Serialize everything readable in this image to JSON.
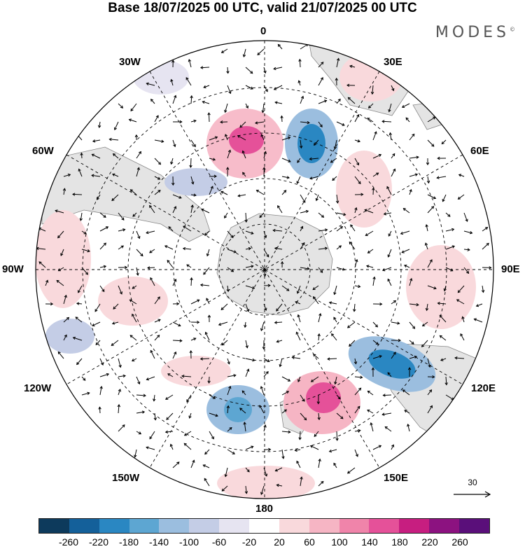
{
  "title": "Base 18/07/2025 00 UTC, valid 21/07/2025 00 UTC",
  "brand": "MODES",
  "brand_mark": "©",
  "longitude_labels": {
    "lon0": "0",
    "lon30e": "30E",
    "lon60e": "60E",
    "lon90e": "90E",
    "lon120e": "120E",
    "lon150e": "150E",
    "lon180": "180",
    "lon150w": "150W",
    "lon120w": "120W",
    "lon90w": "90W",
    "lon60w": "60W",
    "lon30w": "30W"
  },
  "reference_vector": {
    "value": "30"
  },
  "colorbar": {
    "colors": [
      "#0d3a5c",
      "#14609a",
      "#2a87c2",
      "#5da6d2",
      "#9bbedf",
      "#c4cde6",
      "#e6e4f1",
      "#ffffff",
      "#f9d9dc",
      "#f6b5c4",
      "#f084aa",
      "#e55199",
      "#c71e80",
      "#8c1280",
      "#5a0f7a"
    ],
    "labels": [
      "-260",
      "-220",
      "-180",
      "-140",
      "-100",
      "-60",
      "-20",
      "20",
      "60",
      "100",
      "140",
      "180",
      "220",
      "260"
    ]
  },
  "colors": {
    "negative_anomaly": "#3f86bf",
    "positive_anomaly": "#e55199",
    "land": "#e4e4e4",
    "grid": "#000000"
  }
}
